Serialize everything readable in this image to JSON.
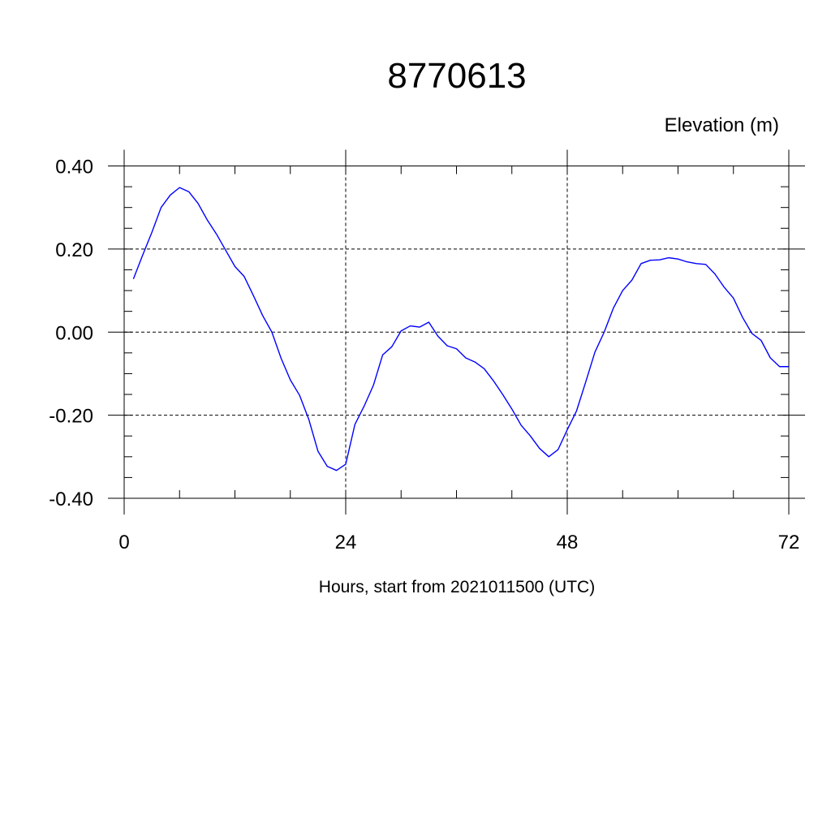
{
  "chart_data": {
    "type": "line",
    "title": "8770613",
    "subtitle": "Elevation (m)",
    "xlabel": "Hours, start from 2021011500 (UTC)",
    "ylabel": "",
    "xlim": [
      0,
      72
    ],
    "ylim": [
      -0.4,
      0.4
    ],
    "xticks": [
      0,
      24,
      48,
      72
    ],
    "xtick_labels": [
      "0",
      "24",
      "48",
      "72"
    ],
    "yticks": [
      -0.4,
      -0.2,
      0.0,
      0.2,
      0.4
    ],
    "ytick_labels": [
      "-0.40",
      "-0.20",
      "0.00",
      "0.20",
      "0.40"
    ],
    "grid": true,
    "line_color": "#0000ff",
    "series": [
      {
        "x": [
          1,
          2,
          3,
          4,
          5,
          6,
          7,
          8,
          9,
          10,
          11,
          12,
          13,
          14,
          15,
          16,
          17,
          18,
          19,
          20,
          21,
          22,
          23,
          24,
          25,
          26,
          27,
          28,
          29,
          30,
          31,
          32,
          33,
          34,
          35,
          36,
          37,
          38,
          39,
          40,
          41,
          42,
          43,
          44,
          45,
          46,
          47,
          48,
          49,
          50,
          51,
          52,
          53,
          54,
          55,
          56,
          57,
          58,
          59,
          60,
          61,
          62,
          63,
          64,
          65,
          66,
          67,
          68,
          69,
          70,
          71,
          72
        ],
        "values": [
          0.128,
          0.185,
          0.24,
          0.3,
          0.33,
          0.348,
          0.338,
          0.31,
          0.27,
          0.236,
          0.197,
          0.158,
          0.134,
          0.088,
          0.04,
          0.0,
          -0.063,
          -0.115,
          -0.152,
          -0.21,
          -0.287,
          -0.323,
          -0.333,
          -0.318,
          -0.222,
          -0.178,
          -0.128,
          -0.055,
          -0.035,
          0.003,
          0.015,
          0.012,
          0.024,
          -0.01,
          -0.033,
          -0.04,
          -0.062,
          -0.072,
          -0.088,
          -0.117,
          -0.15,
          -0.185,
          -0.224,
          -0.25,
          -0.28,
          -0.3,
          -0.283,
          -0.235,
          -0.19,
          -0.12,
          -0.048,
          0.0,
          0.058,
          0.1,
          0.125,
          0.165,
          0.173,
          0.174,
          0.179,
          0.176,
          0.169,
          0.165,
          0.163,
          0.14,
          0.108,
          0.082,
          0.035,
          -0.003,
          -0.02,
          -0.062,
          -0.083,
          -0.083
        ]
      }
    ]
  }
}
